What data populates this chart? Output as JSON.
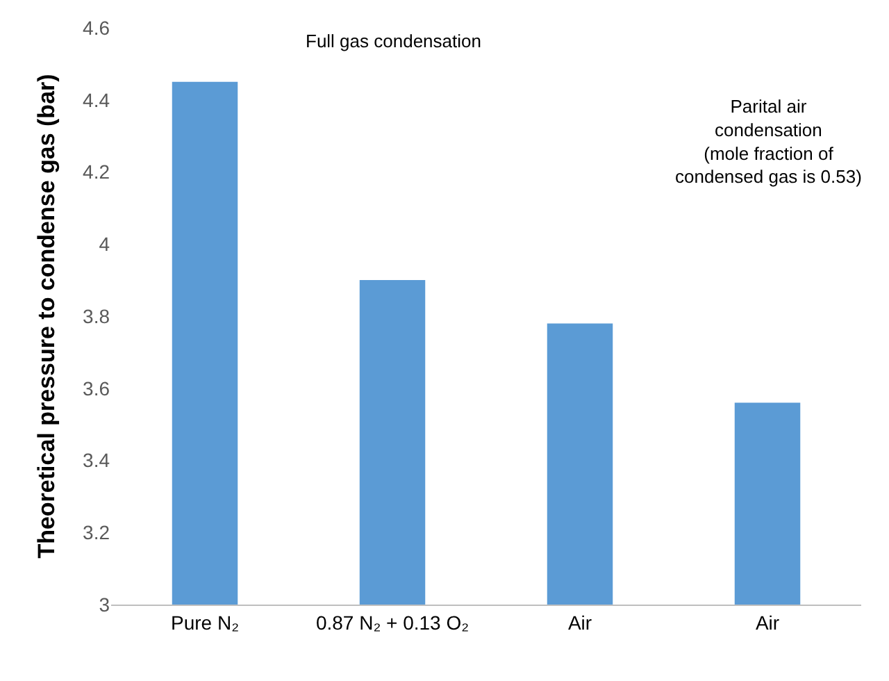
{
  "chart_data": {
    "type": "bar",
    "ylabel": "Theoretical pressure to condense gas (bar)",
    "categories": [
      "Pure N₂",
      "0.87 N₂ + 0.13 O₂",
      "Air",
      "Air"
    ],
    "values": [
      4.45,
      3.9,
      3.78,
      3.56
    ],
    "color": "#5b9bd5",
    "ylim": [
      3,
      4.6
    ],
    "yticks": [
      3,
      3.2,
      3.4,
      3.6,
      3.8,
      4,
      4.2,
      4.4,
      4.6
    ],
    "grid": false,
    "annotations": [
      "Full gas condensation",
      "Parital air\ncondensation\n(mole fraction of\ncondensed gas is 0.53)"
    ]
  }
}
